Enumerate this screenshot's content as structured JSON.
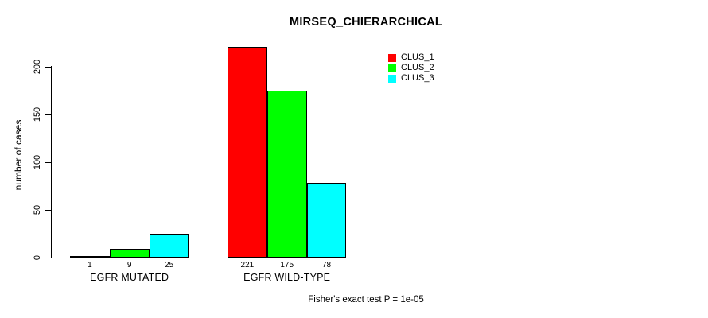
{
  "chart_data": {
    "type": "bar",
    "title": "MIRSEQ_CHIERARCHICAL",
    "ylabel": "number of cases",
    "xlabel": "",
    "categories": [
      "EGFR MUTATED",
      "EGFR WILD-TYPE"
    ],
    "series": [
      {
        "name": "CLUS_1",
        "color": "#ff0000",
        "values": [
          1,
          221
        ]
      },
      {
        "name": "CLUS_2",
        "color": "#00ff00",
        "values": [
          9,
          175
        ]
      },
      {
        "name": "CLUS_3",
        "color": "#00ffff",
        "values": [
          25,
          78
        ]
      }
    ],
    "yticks": [
      0,
      50,
      100,
      150,
      200
    ],
    "ylim": [
      0,
      230
    ],
    "grid": false,
    "bar_value_labels_shown": true,
    "legend_position": "top-right",
    "bar_border_color": "#000000",
    "axis_color": "#000000",
    "background_color": "#ffffff",
    "caption": "Fisher's exact test P = 1e-05"
  }
}
